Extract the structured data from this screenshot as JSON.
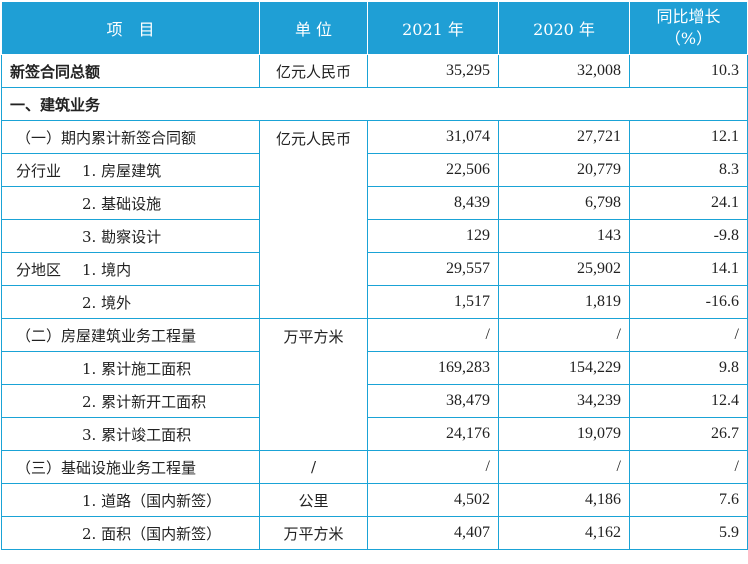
{
  "header": {
    "item": "项　目",
    "unit": "单 位",
    "y2021": "2021 年",
    "y2020": "2020 年",
    "growth_line1": "同比增长",
    "growth_line2": "（%）"
  },
  "total": {
    "label": "新签合同总额",
    "unit": "亿元人民币",
    "v2021": "35,295",
    "v2020": "32,008",
    "growth": "10.3"
  },
  "section1": {
    "label": "一、建筑业务"
  },
  "rows": {
    "r1": {
      "label": "（一）期内累计新签合同额",
      "unit": "亿元人民币",
      "v2021": "31,074",
      "v2020": "27,721",
      "growth": "12.1"
    },
    "r2": {
      "group": "分行业",
      "label": "1. 房屋建筑",
      "v2021": "22,506",
      "v2020": "20,779",
      "growth": "8.3"
    },
    "r3": {
      "label": "2. 基础设施",
      "v2021": "8,439",
      "v2020": "6,798",
      "growth": "24.1"
    },
    "r4": {
      "label": "3. 勘察设计",
      "v2021": "129",
      "v2020": "143",
      "growth": "-9.8"
    },
    "r5": {
      "group": "分地区",
      "label": "1. 境内",
      "v2021": "29,557",
      "v2020": "25,902",
      "growth": "14.1"
    },
    "r6": {
      "label": "2. 境外",
      "v2021": "1,517",
      "v2020": "1,819",
      "growth": "-16.6"
    },
    "r7": {
      "label": "（二）房屋建筑业务工程量",
      "unit": "万平方米",
      "v2021": "/",
      "v2020": "/",
      "growth": "/"
    },
    "r8": {
      "label": "1. 累计施工面积",
      "v2021": "169,283",
      "v2020": "154,229",
      "growth": "9.8"
    },
    "r9": {
      "label": "2. 累计新开工面积",
      "v2021": "38,479",
      "v2020": "34,239",
      "growth": "12.4"
    },
    "r10": {
      "label": "3. 累计竣工面积",
      "v2021": "24,176",
      "v2020": "19,079",
      "growth": "26.7"
    },
    "r11": {
      "label": "（三）基础设施业务工程量",
      "unit": "/",
      "v2021": "/",
      "v2020": "/",
      "growth": "/"
    },
    "r12": {
      "label": "1. 道路（国内新签）",
      "unit": "公里",
      "v2021": "4,502",
      "v2020": "4,186",
      "growth": "7.6"
    },
    "r13": {
      "label": "2. 面积（国内新签）",
      "unit": "万平方米",
      "v2021": "4,407",
      "v2020": "4,162",
      "growth": "5.9"
    }
  },
  "colors": {
    "header_bg": "#1f9fd5",
    "border": "#1aa3d6"
  }
}
